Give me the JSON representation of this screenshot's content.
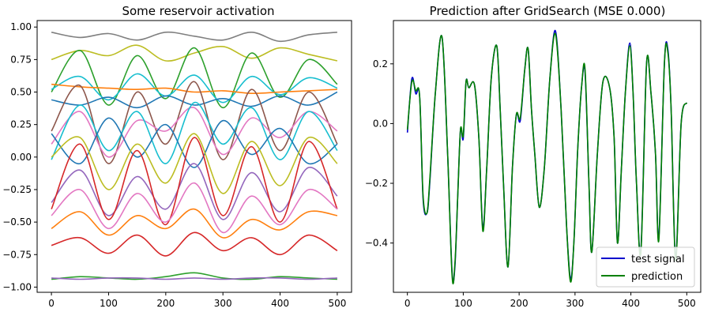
{
  "chart_data": [
    {
      "type": "line",
      "title": "Some reservoir activation",
      "xlabel": "",
      "ylabel": "",
      "xlim": [
        -25,
        525
      ],
      "ylim": [
        -1.04,
        1.05
      ],
      "xticks": [
        0,
        100,
        200,
        300,
        400,
        500
      ],
      "xtick_labels": [
        "0",
        "100",
        "200",
        "300",
        "400",
        "500"
      ],
      "yticks": [
        -1.0,
        -0.75,
        -0.5,
        -0.25,
        0.0,
        0.25,
        0.5,
        0.75,
        1.0
      ],
      "ytick_labels": [
        "−1.00",
        "−0.75",
        "−0.50",
        "−0.25",
        "0.00",
        "0.25",
        "0.50",
        "0.75",
        "1.00"
      ],
      "grid": false,
      "legend": null,
      "series": [
        {
          "color": "#7f7f7f",
          "x": [
            0,
            50,
            100,
            150,
            200,
            250,
            300,
            350,
            400,
            450,
            500
          ],
          "values": [
            0.96,
            0.92,
            0.95,
            0.9,
            0.96,
            0.93,
            0.9,
            0.96,
            0.89,
            0.94,
            0.96
          ]
        },
        {
          "color": "#bcbd22",
          "x": [
            0,
            50,
            100,
            150,
            200,
            250,
            300,
            350,
            400,
            450,
            500
          ],
          "values": [
            0.75,
            0.82,
            0.78,
            0.86,
            0.74,
            0.8,
            0.85,
            0.76,
            0.84,
            0.79,
            0.74
          ]
        },
        {
          "color": "#2ca02c",
          "x": [
            0,
            50,
            100,
            150,
            200,
            250,
            300,
            350,
            400,
            450,
            500
          ],
          "values": [
            0.5,
            0.82,
            0.4,
            0.78,
            0.45,
            0.84,
            0.38,
            0.8,
            0.46,
            0.75,
            0.56
          ]
        },
        {
          "color": "#17becf",
          "x": [
            0,
            50,
            100,
            150,
            200,
            250,
            300,
            350,
            400,
            450,
            500
          ],
          "values": [
            0.52,
            0.62,
            0.44,
            0.64,
            0.47,
            0.63,
            0.42,
            0.62,
            0.48,
            0.61,
            0.53
          ]
        },
        {
          "color": "#ff7f0e",
          "x": [
            0,
            50,
            100,
            150,
            200,
            250,
            300,
            350,
            400,
            450,
            500
          ],
          "values": [
            0.56,
            0.54,
            0.53,
            0.52,
            0.53,
            0.5,
            0.51,
            0.49,
            0.5,
            0.51,
            0.52
          ]
        },
        {
          "color": "#1f77b4",
          "x": [
            0,
            50,
            100,
            150,
            200,
            250,
            300,
            350,
            400,
            450,
            500
          ],
          "values": [
            0.44,
            0.4,
            0.46,
            0.38,
            0.47,
            0.4,
            0.45,
            0.39,
            0.47,
            0.4,
            0.5
          ]
        },
        {
          "color": "#8c564b",
          "x": [
            0,
            50,
            100,
            150,
            200,
            250,
            300,
            350,
            400,
            450,
            500
          ],
          "values": [
            0.2,
            0.55,
            -0.05,
            0.5,
            0.1,
            0.58,
            -0.02,
            0.52,
            0.05,
            0.5,
            0.1
          ]
        },
        {
          "color": "#e377c2",
          "x": [
            0,
            50,
            100,
            150,
            200,
            250,
            300,
            350,
            400,
            450,
            500
          ],
          "values": [
            0.1,
            0.35,
            0.0,
            0.28,
            0.2,
            0.38,
            0.02,
            0.3,
            0.15,
            0.35,
            0.2
          ]
        },
        {
          "color": "#17becf",
          "x": [
            0,
            50,
            100,
            150,
            200,
            250,
            300,
            350,
            400,
            450,
            500
          ],
          "values": [
            -0.02,
            0.4,
            0.05,
            0.35,
            -0.05,
            0.42,
            0.1,
            0.38,
            -0.02,
            0.35,
            0.05
          ]
        },
        {
          "color": "#1f77b4",
          "x": [
            0,
            50,
            100,
            150,
            200,
            250,
            300,
            350,
            400,
            450,
            500
          ],
          "values": [
            0.18,
            -0.05,
            0.3,
            0.0,
            0.25,
            -0.08,
            0.28,
            0.02,
            0.22,
            -0.05,
            0.1
          ]
        },
        {
          "color": "#bcbd22",
          "x": [
            0,
            50,
            100,
            150,
            200,
            250,
            300,
            350,
            400,
            450,
            500
          ],
          "values": [
            0.0,
            0.15,
            -0.25,
            0.1,
            -0.2,
            0.18,
            -0.28,
            0.12,
            -0.22,
            0.15,
            -0.05
          ]
        },
        {
          "color": "#9467bd",
          "x": [
            0,
            50,
            100,
            150,
            200,
            250,
            300,
            350,
            400,
            450,
            500
          ],
          "values": [
            -0.35,
            -0.1,
            -0.45,
            -0.15,
            -0.4,
            -0.05,
            -0.48,
            -0.12,
            -0.42,
            -0.08,
            -0.3
          ]
        },
        {
          "color": "#d62728",
          "x": [
            0,
            50,
            100,
            150,
            200,
            250,
            300,
            350,
            400,
            450,
            500
          ],
          "values": [
            -0.4,
            0.1,
            -0.48,
            0.05,
            -0.52,
            0.15,
            -0.45,
            0.08,
            -0.5,
            0.12,
            -0.4
          ]
        },
        {
          "color": "#e377c2",
          "x": [
            0,
            50,
            100,
            150,
            200,
            250,
            300,
            350,
            400,
            450,
            500
          ],
          "values": [
            -0.45,
            -0.25,
            -0.55,
            -0.28,
            -0.5,
            -0.2,
            -0.58,
            -0.3,
            -0.52,
            -0.25,
            -0.4
          ]
        },
        {
          "color": "#ff7f0e",
          "x": [
            0,
            50,
            100,
            150,
            200,
            250,
            300,
            350,
            400,
            450,
            500
          ],
          "values": [
            -0.55,
            -0.42,
            -0.6,
            -0.45,
            -0.55,
            -0.4,
            -0.62,
            -0.48,
            -0.56,
            -0.42,
            -0.45
          ]
        },
        {
          "color": "#d62728",
          "x": [
            0,
            50,
            100,
            150,
            200,
            250,
            300,
            350,
            400,
            450,
            500
          ],
          "values": [
            -0.68,
            -0.62,
            -0.74,
            -0.6,
            -0.76,
            -0.58,
            -0.72,
            -0.62,
            -0.75,
            -0.6,
            -0.72
          ]
        },
        {
          "color": "#2ca02c",
          "x": [
            0,
            50,
            100,
            150,
            200,
            250,
            300,
            350,
            400,
            450,
            500
          ],
          "values": [
            -0.94,
            -0.92,
            -0.93,
            -0.94,
            -0.92,
            -0.89,
            -0.93,
            -0.94,
            -0.92,
            -0.93,
            -0.94
          ]
        },
        {
          "color": "#9467bd",
          "x": [
            0,
            50,
            100,
            150,
            200,
            250,
            300,
            350,
            400,
            450,
            500
          ],
          "values": [
            -0.93,
            -0.94,
            -0.93,
            -0.93,
            -0.94,
            -0.93,
            -0.94,
            -0.93,
            -0.93,
            -0.94,
            -0.93
          ]
        }
      ]
    },
    {
      "type": "line",
      "title": "Prediction after GridSearch (MSE 0.000)",
      "xlabel": "",
      "ylabel": "",
      "xlim": [
        -25,
        525
      ],
      "ylim": [
        -0.565,
        0.345
      ],
      "xticks": [
        0,
        100,
        200,
        300,
        400,
        500
      ],
      "xtick_labels": [
        "0",
        "100",
        "200",
        "300",
        "400",
        "500"
      ],
      "yticks": [
        -0.4,
        -0.2,
        0.0,
        0.2
      ],
      "ytick_labels": [
        "−0.4",
        "−0.2",
        "0.0",
        "0.2"
      ],
      "grid": false,
      "legend": "lower-right",
      "x": [
        0,
        8,
        15,
        22,
        28,
        35,
        40,
        50,
        62,
        72,
        80,
        85,
        90,
        95,
        100,
        105,
        110,
        120,
        128,
        135,
        142,
        150,
        160,
        166,
        172,
        180,
        188,
        195,
        202,
        210,
        216,
        222,
        228,
        236,
        245,
        255,
        265,
        275,
        285,
        292,
        298,
        305,
        312,
        318,
        325,
        330,
        340,
        350,
        362,
        370,
        376,
        383,
        390,
        398,
        404,
        410,
        418,
        428,
        436,
        444,
        450,
        460,
        466,
        472,
        480,
        490,
        500
      ],
      "series": [
        {
          "name": "test signal",
          "color": "#0000cc",
          "values": [
            -0.03,
            0.15,
            0.1,
            0.09,
            -0.25,
            -0.3,
            -0.2,
            0.1,
            0.29,
            -0.1,
            -0.5,
            -0.48,
            -0.25,
            -0.02,
            -0.05,
            0.14,
            0.12,
            0.13,
            -0.05,
            -0.35,
            -0.15,
            0.15,
            0.26,
            0.05,
            -0.2,
            -0.48,
            -0.15,
            0.03,
            0.01,
            0.18,
            0.25,
            0.05,
            -0.1,
            -0.28,
            -0.15,
            0.15,
            0.31,
            0.05,
            -0.35,
            -0.52,
            -0.4,
            -0.08,
            0.13,
            0.17,
            -0.2,
            -0.43,
            -0.1,
            0.14,
            0.12,
            -0.05,
            -0.4,
            -0.15,
            0.1,
            0.27,
            0.1,
            -0.2,
            -0.42,
            0.2,
            0.1,
            -0.1,
            -0.38,
            0.2,
            0.25,
            0.05,
            -0.45,
            0.0,
            0.07
          ]
        },
        {
          "name": "prediction",
          "color": "#008000",
          "values": [
            -0.02,
            0.14,
            0.11,
            0.09,
            -0.24,
            -0.3,
            -0.19,
            0.1,
            0.29,
            -0.1,
            -0.51,
            -0.47,
            -0.25,
            -0.02,
            -0.04,
            0.14,
            0.12,
            0.13,
            -0.05,
            -0.36,
            -0.15,
            0.15,
            0.26,
            0.05,
            -0.2,
            -0.48,
            -0.15,
            0.03,
            0.02,
            0.18,
            0.25,
            0.05,
            -0.1,
            -0.28,
            -0.15,
            0.15,
            0.3,
            0.05,
            -0.35,
            -0.53,
            -0.4,
            -0.08,
            0.13,
            0.18,
            -0.2,
            -0.43,
            -0.1,
            0.14,
            0.12,
            -0.05,
            -0.4,
            -0.15,
            0.1,
            0.26,
            0.1,
            -0.2,
            -0.43,
            0.2,
            0.1,
            -0.1,
            -0.39,
            0.2,
            0.24,
            0.05,
            -0.46,
            0.0,
            0.07
          ]
        }
      ]
    }
  ]
}
